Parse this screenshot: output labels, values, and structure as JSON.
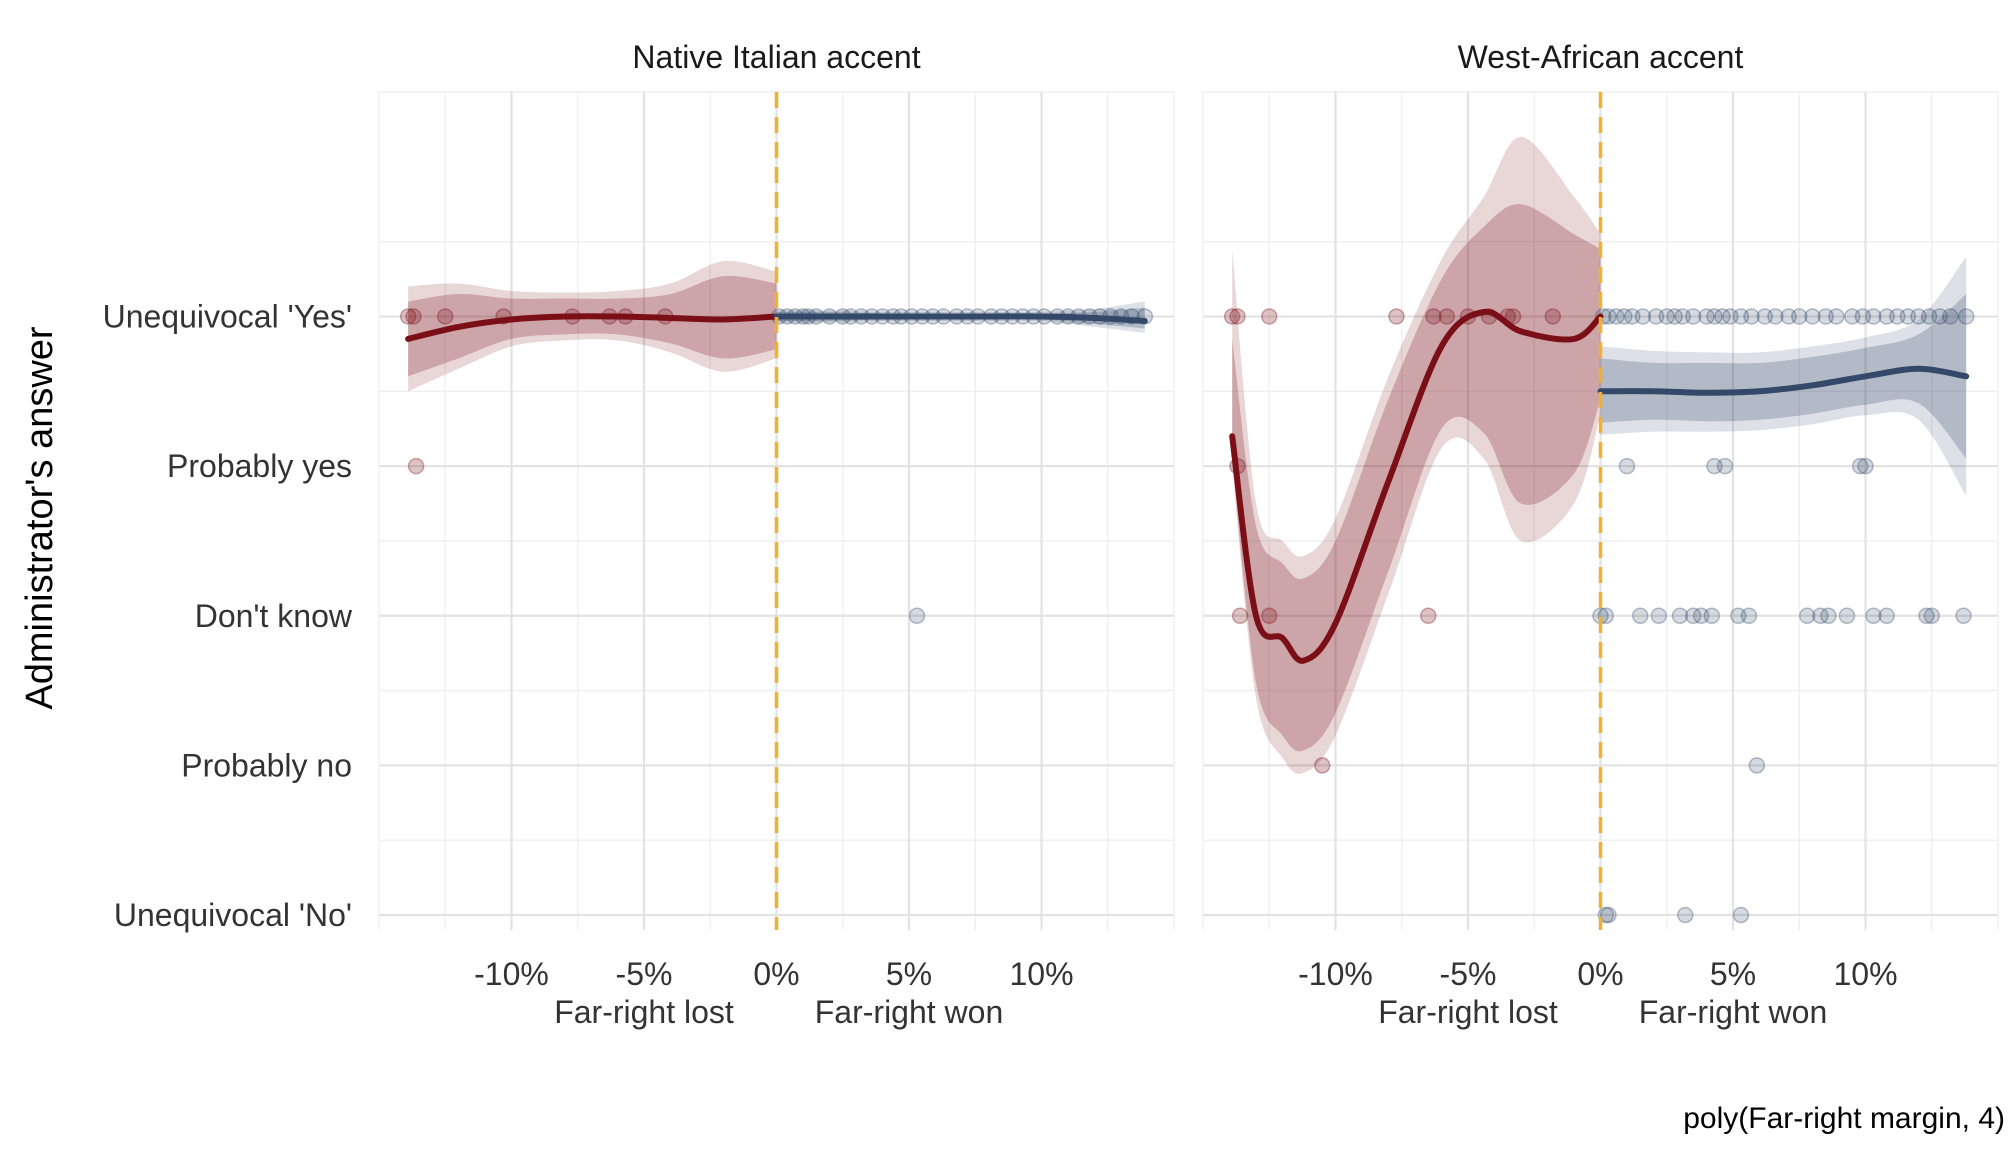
{
  "chart_data": {
    "type": "scatter",
    "ylabel": "Administrator's answer",
    "caption": "poly(Far-right margin, 4)",
    "y_categories": [
      "Unequivocal 'No'",
      "Probably no",
      "Don't know",
      "Probably yes",
      "Unequivocal 'Yes'"
    ],
    "x_ticks": [
      -10,
      -5,
      0,
      5,
      10
    ],
    "x_tick_labels": [
      "-10%",
      "-5%",
      "0%",
      "5%",
      "10%"
    ],
    "xlim": [
      -15,
      15
    ],
    "ylim": [
      0.9,
      6.5
    ],
    "region_labels": {
      "lost": "Far-right lost",
      "won": "Far-right won"
    },
    "cutoff": 0,
    "colors": {
      "lost": "#7b0f17",
      "won": "#34496a",
      "cutoff": "#f6ae2d"
    },
    "panels": [
      {
        "title": "Native Italian accent",
        "points_lost": [
          [
            -13.9,
            5
          ],
          [
            -13.7,
            5
          ],
          [
            -12.5,
            5
          ],
          [
            -10.3,
            5
          ],
          [
            -7.7,
            5
          ],
          [
            -6.3,
            5
          ],
          [
            -5.7,
            5
          ],
          [
            -4.2,
            5
          ],
          [
            -13.6,
            4
          ]
        ],
        "points_won": [
          [
            0.1,
            5
          ],
          [
            0.4,
            5
          ],
          [
            0.7,
            5
          ],
          [
            1.0,
            5
          ],
          [
            1.2,
            5
          ],
          [
            1.5,
            5
          ],
          [
            2.0,
            5
          ],
          [
            2.5,
            5
          ],
          [
            2.8,
            5
          ],
          [
            3.2,
            5
          ],
          [
            3.6,
            5
          ],
          [
            4.0,
            5
          ],
          [
            4.4,
            5
          ],
          [
            4.7,
            5
          ],
          [
            5.1,
            5
          ],
          [
            5.5,
            5
          ],
          [
            5.9,
            5
          ],
          [
            6.3,
            5
          ],
          [
            6.8,
            5
          ],
          [
            7.2,
            5
          ],
          [
            7.6,
            5
          ],
          [
            8.1,
            5
          ],
          [
            8.5,
            5
          ],
          [
            8.9,
            5
          ],
          [
            9.3,
            5
          ],
          [
            9.7,
            5
          ],
          [
            10.1,
            5
          ],
          [
            10.6,
            5
          ],
          [
            11.0,
            5
          ],
          [
            11.4,
            5
          ],
          [
            11.8,
            5
          ],
          [
            12.2,
            5
          ],
          [
            12.6,
            5
          ],
          [
            13.0,
            5
          ],
          [
            13.4,
            5
          ],
          [
            13.9,
            5
          ],
          [
            5.3,
            3
          ]
        ],
        "fit_lost": {
          "x": [
            -13.9,
            -12,
            -10,
            -8,
            -6,
            -4,
            -2,
            0
          ],
          "y": [
            4.85,
            4.93,
            4.98,
            5.0,
            5.0,
            4.99,
            4.98,
            5.0
          ],
          "lower": [
            4.6,
            4.72,
            4.85,
            4.88,
            4.88,
            4.82,
            4.72,
            4.78
          ],
          "upper": [
            5.1,
            5.15,
            5.12,
            5.12,
            5.12,
            5.15,
            5.27,
            5.22
          ],
          "outer_lower": [
            4.5,
            4.65,
            4.8,
            4.84,
            4.84,
            4.76,
            4.63,
            4.72
          ],
          "outer_upper": [
            5.2,
            5.22,
            5.17,
            5.16,
            5.17,
            5.22,
            5.37,
            5.3
          ]
        },
        "fit_won": {
          "x": [
            0,
            2,
            4,
            6,
            8,
            10,
            12,
            13.9
          ],
          "y": [
            5.0,
            5.0,
            5.0,
            5.0,
            5.0,
            5.0,
            4.99,
            4.97
          ],
          "lower": [
            4.97,
            4.97,
            4.98,
            4.98,
            4.98,
            4.98,
            4.95,
            4.92
          ],
          "upper": [
            5.03,
            5.03,
            5.02,
            5.02,
            5.02,
            5.02,
            5.03,
            5.06
          ],
          "outer_lower": [
            4.96,
            4.96,
            4.97,
            4.97,
            4.97,
            4.97,
            4.93,
            4.89
          ],
          "outer_upper": [
            5.04,
            5.04,
            5.03,
            5.03,
            5.03,
            5.03,
            5.05,
            5.1
          ]
        }
      },
      {
        "title": "West-African accent",
        "points_lost": [
          [
            -13.9,
            5
          ],
          [
            -13.7,
            5
          ],
          [
            -12.5,
            5
          ],
          [
            -7.7,
            5
          ],
          [
            -6.3,
            5
          ],
          [
            -5.8,
            5
          ],
          [
            -5.0,
            5
          ],
          [
            -4.2,
            5
          ],
          [
            -3.5,
            5
          ],
          [
            -3.3,
            5
          ],
          [
            -1.8,
            5
          ],
          [
            -13.7,
            4
          ],
          [
            -13.6,
            3
          ],
          [
            -12.5,
            3
          ],
          [
            -6.5,
            3
          ],
          [
            -10.5,
            2
          ]
        ],
        "points_won": [
          [
            0.1,
            5
          ],
          [
            0.3,
            5
          ],
          [
            0.6,
            5
          ],
          [
            0.9,
            5
          ],
          [
            1.2,
            5
          ],
          [
            1.6,
            5
          ],
          [
            2.1,
            5
          ],
          [
            2.5,
            5
          ],
          [
            2.8,
            5
          ],
          [
            3.1,
            5
          ],
          [
            3.5,
            5
          ],
          [
            4.0,
            5
          ],
          [
            4.3,
            5
          ],
          [
            4.6,
            5
          ],
          [
            4.9,
            5
          ],
          [
            5.3,
            5
          ],
          [
            5.7,
            5
          ],
          [
            6.2,
            5
          ],
          [
            6.6,
            5
          ],
          [
            7.1,
            5
          ],
          [
            7.5,
            5
          ],
          [
            8.0,
            5
          ],
          [
            8.5,
            5
          ],
          [
            8.9,
            5
          ],
          [
            9.5,
            5
          ],
          [
            9.9,
            5
          ],
          [
            10.3,
            5
          ],
          [
            10.8,
            5
          ],
          [
            11.2,
            5
          ],
          [
            11.6,
            5
          ],
          [
            12.0,
            5
          ],
          [
            12.4,
            5
          ],
          [
            12.8,
            5
          ],
          [
            13.2,
            5
          ],
          [
            13.8,
            5
          ],
          [
            1.0,
            4
          ],
          [
            4.3,
            4
          ],
          [
            4.7,
            4
          ],
          [
            9.8,
            4
          ],
          [
            10.0,
            4
          ],
          [
            0.0,
            3
          ],
          [
            0.2,
            3
          ],
          [
            1.5,
            3
          ],
          [
            2.2,
            3
          ],
          [
            3.0,
            3
          ],
          [
            3.5,
            3
          ],
          [
            3.8,
            3
          ],
          [
            4.2,
            3
          ],
          [
            5.2,
            3
          ],
          [
            5.6,
            3
          ],
          [
            7.8,
            3
          ],
          [
            8.3,
            3
          ],
          [
            8.6,
            3
          ],
          [
            9.3,
            3
          ],
          [
            10.3,
            3
          ],
          [
            10.8,
            3
          ],
          [
            12.3,
            3
          ],
          [
            12.5,
            3
          ],
          [
            13.7,
            3
          ],
          [
            5.9,
            2
          ],
          [
            0.2,
            1
          ],
          [
            0.3,
            1
          ],
          [
            3.2,
            1
          ],
          [
            5.3,
            1
          ]
        ],
        "fit_lost": {
          "x": [
            -13.9,
            -13,
            -12,
            -11.2,
            -10,
            -8,
            -6,
            -4.4,
            -3,
            -1,
            0
          ],
          "y": [
            4.2,
            3.0,
            2.85,
            2.7,
            2.95,
            3.9,
            4.8,
            5.03,
            4.9,
            4.85,
            5.0
          ],
          "lower": [
            4.05,
            2.55,
            2.2,
            2.1,
            2.35,
            3.3,
            4.25,
            4.22,
            3.75,
            3.95,
            4.45
          ],
          "upper": [
            4.85,
            3.6,
            3.35,
            3.25,
            3.5,
            4.45,
            5.25,
            5.6,
            5.75,
            5.55,
            5.45
          ],
          "outer_lower": [
            4.0,
            2.45,
            2.05,
            1.95,
            2.2,
            3.15,
            4.12,
            4.05,
            3.5,
            3.75,
            4.35
          ],
          "outer_upper": [
            5.45,
            3.75,
            3.5,
            3.4,
            3.65,
            4.6,
            5.38,
            5.8,
            6.2,
            5.8,
            5.55
          ]
        },
        "fit_won": {
          "x": [
            0,
            2,
            4,
            6,
            8,
            10,
            12,
            13.8
          ],
          "y": [
            4.5,
            4.5,
            4.49,
            4.5,
            4.54,
            4.6,
            4.65,
            4.6
          ],
          "lower": [
            4.29,
            4.31,
            4.3,
            4.31,
            4.35,
            4.41,
            4.42,
            4.05
          ],
          "upper": [
            4.72,
            4.69,
            4.69,
            4.69,
            4.73,
            4.79,
            4.88,
            5.15
          ],
          "outer_lower": [
            4.21,
            4.23,
            4.23,
            4.24,
            4.28,
            4.34,
            4.31,
            3.8
          ],
          "outer_upper": [
            4.8,
            4.77,
            4.76,
            4.76,
            4.8,
            4.86,
            4.98,
            5.4
          ]
        }
      }
    ]
  }
}
